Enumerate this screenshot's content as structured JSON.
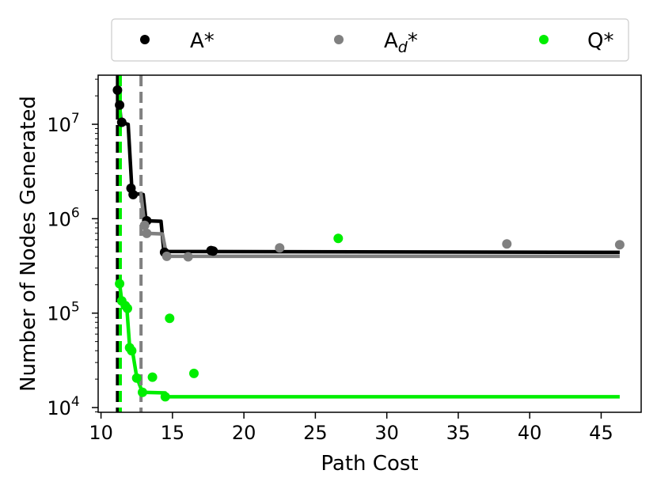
{
  "chart_data": {
    "type": "scatter",
    "title": "",
    "xlabel": "Path Cost",
    "ylabel": "Number of Nodes Generated",
    "xlim": [
      9.8,
      47.8
    ],
    "ylim_log10": [
      3.95,
      7.52
    ],
    "y_scale": "log",
    "grid": false,
    "legend_position": "top",
    "x_ticks": [
      10,
      15,
      20,
      25,
      30,
      35,
      40,
      45
    ],
    "y_ticks": [
      {
        "exp": 4,
        "base": "10",
        "sup": "4"
      },
      {
        "exp": 5,
        "base": "10",
        "sup": "5"
      },
      {
        "exp": 6,
        "base": "10",
        "sup": "6"
      },
      {
        "exp": 7,
        "base": "10",
        "sup": "7"
      }
    ],
    "series": [
      {
        "name": "A*",
        "legend_main": "A",
        "legend_sub": "",
        "legend_suffix": "*",
        "color": "#000000",
        "vline_x": 11.15,
        "points": [
          [
            11.15,
            23000000
          ],
          [
            11.3,
            16000000
          ],
          [
            11.45,
            10500000
          ],
          [
            12.1,
            2100000
          ],
          [
            12.25,
            1800000
          ],
          [
            13.2,
            950000
          ],
          [
            14.45,
            440000
          ],
          [
            17.7,
            460000
          ],
          [
            17.85,
            455000
          ]
        ],
        "frontier": [
          [
            11.15,
            23000000
          ],
          [
            11.3,
            16000000
          ],
          [
            11.4,
            10500000
          ],
          [
            11.9,
            10000000
          ],
          [
            12.15,
            2200000
          ],
          [
            12.3,
            1850000
          ],
          [
            12.95,
            1800000
          ],
          [
            13.15,
            950000
          ],
          [
            14.2,
            940000
          ],
          [
            14.4,
            450000
          ],
          [
            46.3,
            440000
          ]
        ]
      },
      {
        "name": "Ad*",
        "legend_main": "A",
        "legend_sub": "d",
        "legend_suffix": "*",
        "color": "#808080",
        "vline_x": 12.8,
        "points": [
          [
            13.05,
            850000
          ],
          [
            13.2,
            700000
          ],
          [
            14.6,
            400000
          ],
          [
            16.1,
            395000
          ],
          [
            22.5,
            490000
          ],
          [
            38.4,
            540000
          ],
          [
            46.3,
            530000
          ]
        ],
        "frontier": [
          [
            12.8,
            1800000
          ],
          [
            13.05,
            850000
          ],
          [
            13.2,
            700000
          ],
          [
            14.3,
            690000
          ],
          [
            14.6,
            400000
          ],
          [
            46.3,
            400000
          ]
        ]
      },
      {
        "name": "Q*",
        "legend_main": "Q",
        "legend_sub": "",
        "legend_suffix": "*",
        "color": "#00ee00",
        "vline_x": 11.35,
        "points": [
          [
            11.3,
            205000
          ],
          [
            11.45,
            135000
          ],
          [
            11.7,
            120000
          ],
          [
            11.85,
            112000
          ],
          [
            12.0,
            43000
          ],
          [
            12.15,
            40000
          ],
          [
            12.5,
            20500
          ],
          [
            12.9,
            14500
          ],
          [
            13.6,
            21000
          ],
          [
            14.5,
            13000
          ],
          [
            14.8,
            88000
          ],
          [
            16.5,
            23000
          ],
          [
            26.6,
            620000
          ]
        ],
        "frontier": [
          [
            11.3,
            205000
          ],
          [
            11.45,
            135000
          ],
          [
            11.8,
            118000
          ],
          [
            12.0,
            45000
          ],
          [
            12.2,
            40000
          ],
          [
            12.5,
            21000
          ],
          [
            12.9,
            14500
          ],
          [
            14.5,
            14300
          ],
          [
            14.6,
            13000
          ],
          [
            46.3,
            13000
          ]
        ]
      }
    ]
  }
}
